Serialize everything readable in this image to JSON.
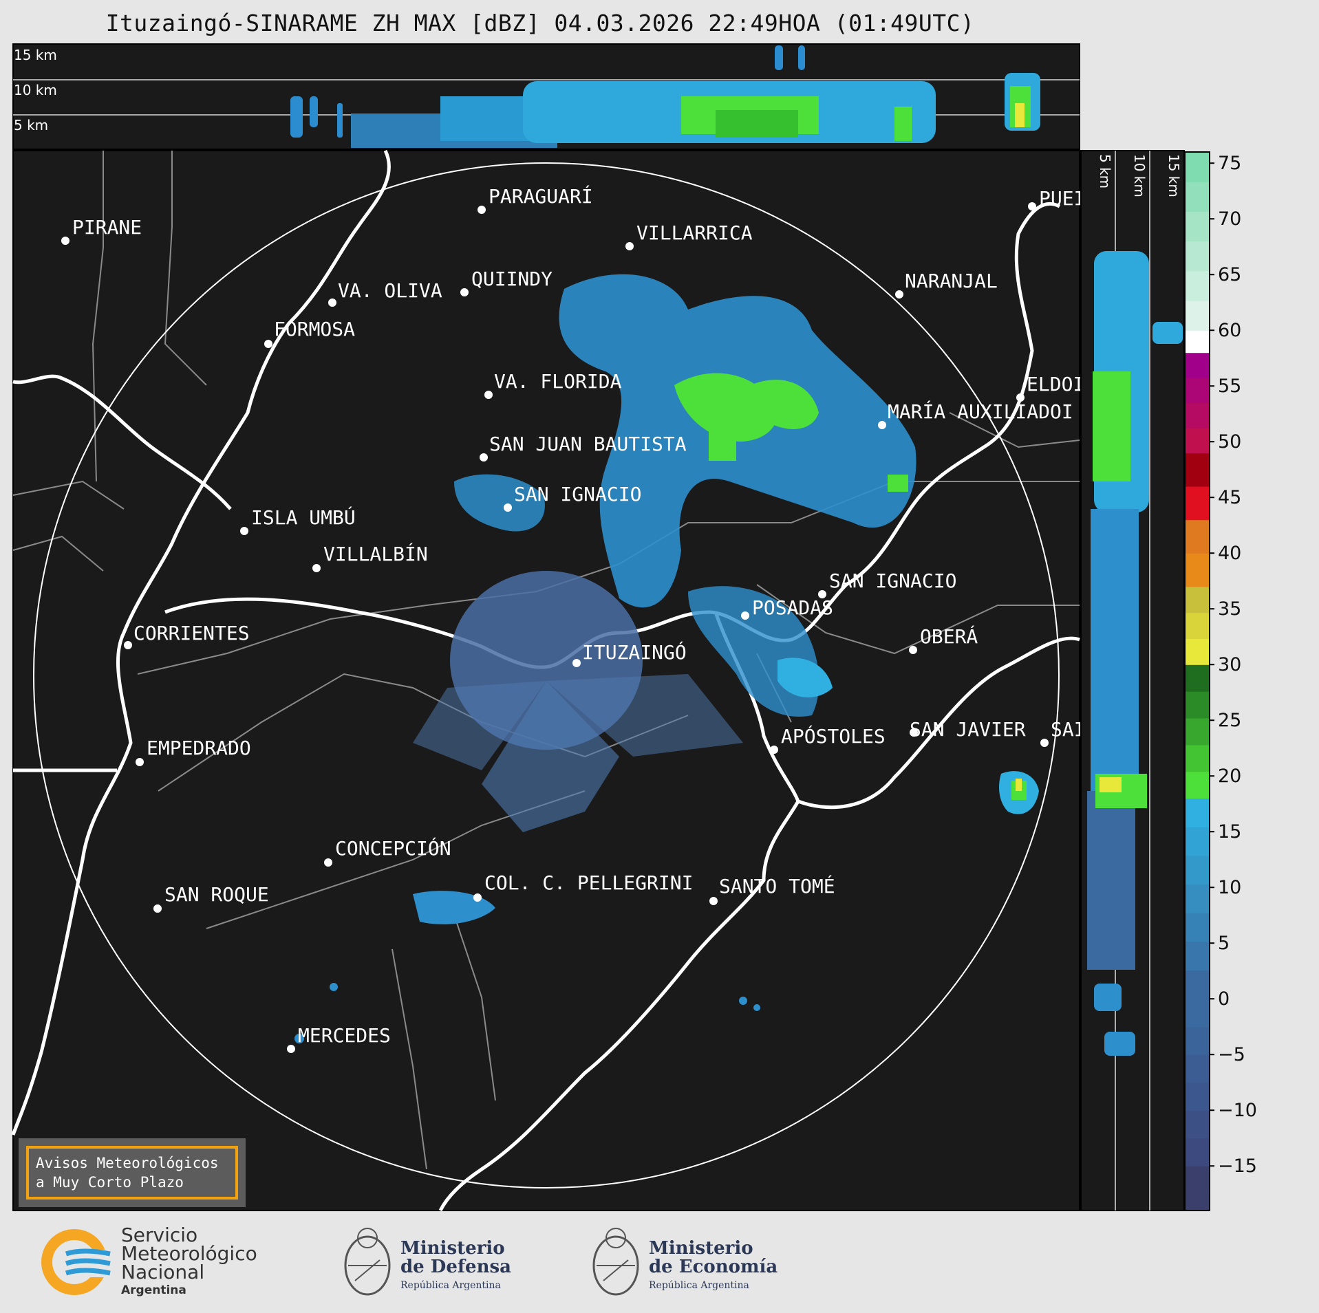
{
  "title": "Ituzaingó-SINARAME ZH MAX [dBZ] 04.03.2026 22:49HOA (01:49UTC)",
  "top_panel": {
    "height_labels": [
      "15 km",
      "10 km",
      "5 km"
    ]
  },
  "side_panel": {
    "height_labels": [
      "5 km",
      "10 km",
      "15 km"
    ]
  },
  "colorbar": {
    "units": "dBZ",
    "ticks": [
      "75",
      "70",
      "65",
      "60",
      "55",
      "50",
      "45",
      "40",
      "35",
      "30",
      "25",
      "20",
      "15",
      "10",
      "5",
      "0",
      "−5",
      "−10",
      "−15"
    ],
    "range": [
      -19,
      76
    ],
    "colors": {
      "min_band": "#3b3f6b",
      "blue_low": "#3a6aa0",
      "blue_high": "#2fb0e0",
      "green": "#4ee03a",
      "yellow": "#e8e83a",
      "orange": "#e88a1a",
      "red": "#e01020",
      "magenta": "#e000e0",
      "white_band": "#ffffff",
      "mint": "#7fdcb0"
    }
  },
  "cities": [
    {
      "name": "PARAGUARÍ"
    },
    {
      "name": "PIRANE"
    },
    {
      "name": "VILLARRICA"
    },
    {
      "name": "QUIINDY"
    },
    {
      "name": "VA. OLIVA"
    },
    {
      "name": "NARANJAL"
    },
    {
      "name": "PUEI"
    },
    {
      "name": "FORMOSA"
    },
    {
      "name": "VA. FLORIDA"
    },
    {
      "name": "ELDOI"
    },
    {
      "name": "MARÍA AUXILIADOI"
    },
    {
      "name": "SAN JUAN BAUTISTA"
    },
    {
      "name": "SAN IGNACIO"
    },
    {
      "name": "ISLA UMBÚ"
    },
    {
      "name": "VILLALBÍN"
    },
    {
      "name": "SAN IGNACIO"
    },
    {
      "name": "POSADAS"
    },
    {
      "name": "CORRIENTES"
    },
    {
      "name": "ITUZAINGÓ"
    },
    {
      "name": "OBERÁ"
    },
    {
      "name": "EMPEDRADO"
    },
    {
      "name": "APÓSTOLES"
    },
    {
      "name": "SAN JAVIER"
    },
    {
      "name": "SAI"
    },
    {
      "name": "CONCEPCIÓN"
    },
    {
      "name": "COL. C. PELLEGRINI"
    },
    {
      "name": "SANTO TOMÉ"
    },
    {
      "name": "SAN ROQUE"
    },
    {
      "name": "MERCEDES"
    }
  ],
  "aviso": {
    "line1": "Avisos Meteorológicos",
    "line2": "a Muy Corto Plazo"
  },
  "logos": {
    "smn": {
      "line1": "Servicio",
      "line2": "Meteorológico",
      "line3": "Nacional",
      "line4": "Argentina"
    },
    "defensa": {
      "line1": "Ministerio",
      "line2": "de Defensa",
      "line3": "República Argentina"
    },
    "economia": {
      "line1": "Ministerio",
      "line2": "de Economía",
      "line3": "República Argentina"
    }
  }
}
